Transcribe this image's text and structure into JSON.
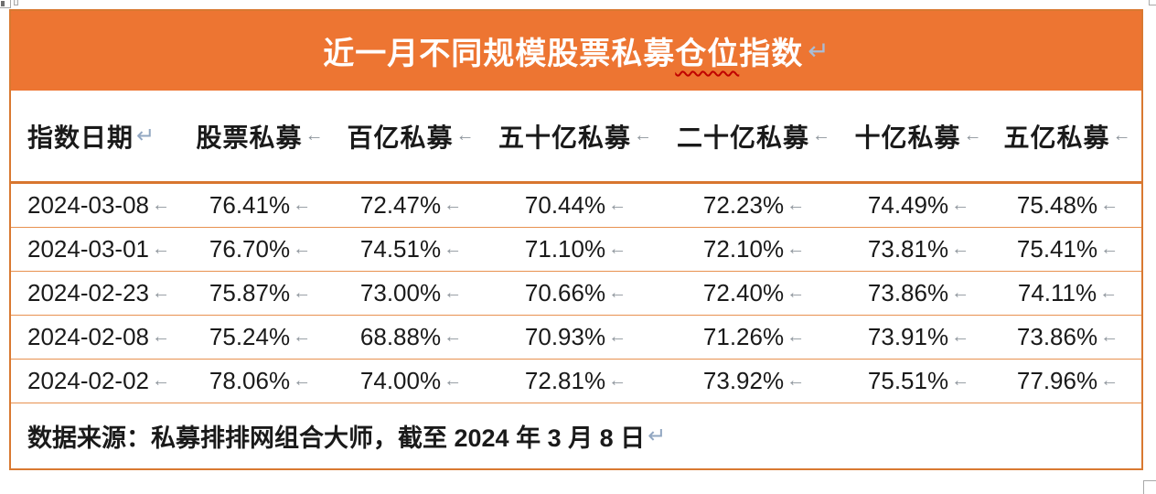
{
  "banner": {
    "title_prefix": "近一月不同规模股票私募",
    "title_spellcheck": "仓位",
    "title_suffix": "指数",
    "paragraph_mark": "↵"
  },
  "table": {
    "cell_mark": "←",
    "para_mark": "↵",
    "columns": [
      "指数日期",
      "股票私募",
      "百亿私募",
      "五十亿私募",
      "二十亿私募",
      "十亿私募",
      "五亿私募"
    ],
    "rows": [
      {
        "date": "2024-03-08",
        "values": [
          "76.41%",
          "72.47%",
          "70.44%",
          "72.23%",
          "74.49%",
          "75.48%"
        ]
      },
      {
        "date": "2024-03-01",
        "values": [
          "76.70%",
          "74.51%",
          "71.10%",
          "72.10%",
          "73.81%",
          "75.41%"
        ]
      },
      {
        "date": "2024-02-23",
        "values": [
          "75.87%",
          "73.00%",
          "70.66%",
          "72.40%",
          "73.86%",
          "74.11%"
        ]
      },
      {
        "date": "2024-02-08",
        "values": [
          "75.24%",
          "68.88%",
          "70.93%",
          "71.26%",
          "73.91%",
          "73.86%"
        ]
      },
      {
        "date": "2024-02-02",
        "values": [
          "78.06%",
          "74.00%",
          "72.81%",
          "73.92%",
          "75.51%",
          "77.96%"
        ]
      }
    ],
    "source_note": "数据来源：私募排排网组合大师，截至 2024 年 3 月 8 日"
  },
  "colors": {
    "banner_bg": "#ed7532",
    "table_border": "#d97931",
    "row_divider": "#e89150",
    "cell_mark_gray": "#8e959c",
    "paragraph_mark_blue": "#92a7c2",
    "spellcheck_red": "#c00000",
    "title_text": "#ffffff",
    "body_text": "#1a1a1a"
  }
}
